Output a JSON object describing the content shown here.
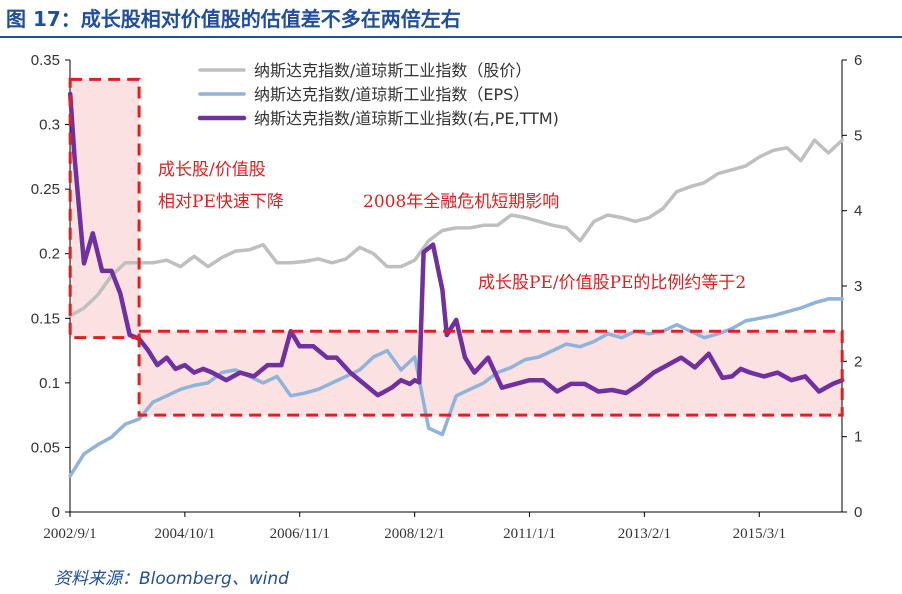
{
  "header": {
    "title": "图 17：成长股相对价值股的估值差不多在两倍左右"
  },
  "footer": {
    "source": "资料来源：Bloomberg、wind"
  },
  "chart_data": {
    "type": "line",
    "title": "图 17：成长股相对价值股的估值差不多在两倍左右",
    "xlabel": "",
    "ylabel": "",
    "x_tick_labels": [
      "2002/9/1",
      "2004/10/1",
      "2006/11/1",
      "2008/12/1",
      "2011/1/1",
      "2013/2/1",
      "2015/3/1"
    ],
    "x_ticks_year": [
      2002.667,
      2004.75,
      2006.833,
      2008.917,
      2011.0,
      2013.083,
      2015.167
    ],
    "xlim": [
      2002.667,
      2016.667
    ],
    "ylim_left": [
      0,
      0.35
    ],
    "y_ticks_left": [
      0,
      0.05,
      0.1,
      0.15,
      0.2,
      0.25,
      0.3,
      0.35
    ],
    "ylim_right": [
      0,
      6
    ],
    "y_ticks_right": [
      0,
      1,
      2,
      3,
      4,
      5,
      6
    ],
    "legend_position": "top-center",
    "grid": false,
    "series": [
      {
        "name": "纳斯达克指数/道琼斯工业指数（股价）",
        "axis": "left",
        "color": "#bfbfbf",
        "x": [
          2002.67,
          2002.92,
          2003.17,
          2003.42,
          2003.67,
          2003.92,
          2004.17,
          2004.42,
          2004.67,
          2004.92,
          2005.17,
          2005.42,
          2005.67,
          2005.92,
          2006.17,
          2006.42,
          2006.67,
          2006.92,
          2007.17,
          2007.42,
          2007.67,
          2007.92,
          2008.17,
          2008.42,
          2008.67,
          2008.92,
          2009.17,
          2009.42,
          2009.67,
          2009.92,
          2010.17,
          2010.42,
          2010.67,
          2010.92,
          2011.17,
          2011.42,
          2011.67,
          2011.92,
          2012.17,
          2012.42,
          2012.67,
          2012.92,
          2013.17,
          2013.42,
          2013.67,
          2013.92,
          2014.17,
          2014.42,
          2014.67,
          2014.92,
          2015.17,
          2015.42,
          2015.67,
          2015.92,
          2016.17,
          2016.42,
          2016.67
        ],
        "values": [
          0.152,
          0.158,
          0.168,
          0.183,
          0.193,
          0.193,
          0.193,
          0.195,
          0.19,
          0.198,
          0.19,
          0.197,
          0.202,
          0.203,
          0.207,
          0.193,
          0.193,
          0.194,
          0.196,
          0.193,
          0.196,
          0.205,
          0.2,
          0.19,
          0.19,
          0.195,
          0.21,
          0.218,
          0.22,
          0.22,
          0.222,
          0.222,
          0.23,
          0.228,
          0.225,
          0.222,
          0.22,
          0.21,
          0.225,
          0.23,
          0.228,
          0.225,
          0.228,
          0.235,
          0.248,
          0.252,
          0.255,
          0.262,
          0.265,
          0.268,
          0.275,
          0.28,
          0.282,
          0.272,
          0.288,
          0.278,
          0.288
        ]
      },
      {
        "name": "纳斯达克指数/道琼斯工业指数（EPS）",
        "axis": "left",
        "color": "#8fb3da",
        "x": [
          2002.67,
          2002.92,
          2003.17,
          2003.42,
          2003.67,
          2003.92,
          2004.17,
          2004.42,
          2004.67,
          2004.92,
          2005.17,
          2005.42,
          2005.67,
          2005.92,
          2006.17,
          2006.42,
          2006.67,
          2006.92,
          2007.17,
          2007.42,
          2007.67,
          2007.92,
          2008.17,
          2008.42,
          2008.67,
          2008.92,
          2009.17,
          2009.42,
          2009.67,
          2009.92,
          2010.17,
          2010.42,
          2010.67,
          2010.92,
          2011.17,
          2011.42,
          2011.67,
          2011.92,
          2012.17,
          2012.42,
          2012.67,
          2012.92,
          2013.17,
          2013.42,
          2013.67,
          2013.92,
          2014.17,
          2014.42,
          2014.67,
          2014.92,
          2015.17,
          2015.42,
          2015.67,
          2015.92,
          2016.17,
          2016.42,
          2016.67
        ],
        "values": [
          0.028,
          0.045,
          0.052,
          0.058,
          0.068,
          0.072,
          0.085,
          0.09,
          0.095,
          0.098,
          0.1,
          0.108,
          0.11,
          0.105,
          0.1,
          0.105,
          0.09,
          0.092,
          0.095,
          0.1,
          0.105,
          0.11,
          0.12,
          0.125,
          0.11,
          0.12,
          0.065,
          0.06,
          0.09,
          0.095,
          0.1,
          0.108,
          0.112,
          0.118,
          0.12,
          0.125,
          0.13,
          0.128,
          0.132,
          0.138,
          0.135,
          0.14,
          0.138,
          0.14,
          0.145,
          0.14,
          0.135,
          0.138,
          0.142,
          0.148,
          0.15,
          0.152,
          0.155,
          0.158,
          0.162,
          0.165,
          0.165
        ]
      },
      {
        "name": "纳斯达克指数/道琼斯工业指数(右,PE,TTM)",
        "axis": "right",
        "color": "#7030a0",
        "x": [
          2002.67,
          2002.75,
          2002.92,
          2003.08,
          2003.25,
          2003.42,
          2003.58,
          2003.75,
          2003.92,
          2004.08,
          2004.25,
          2004.42,
          2004.58,
          2004.75,
          2004.92,
          2005.08,
          2005.25,
          2005.5,
          2005.75,
          2006.0,
          2006.25,
          2006.5,
          2006.67,
          2006.83,
          2007.08,
          2007.33,
          2007.5,
          2007.75,
          2008.0,
          2008.25,
          2008.5,
          2008.67,
          2008.83,
          2008.92,
          2009.0,
          2009.08,
          2009.25,
          2009.42,
          2009.5,
          2009.67,
          2009.83,
          2010.0,
          2010.25,
          2010.5,
          2010.75,
          2011.0,
          2011.25,
          2011.5,
          2011.75,
          2012.0,
          2012.25,
          2012.5,
          2012.75,
          2013.0,
          2013.25,
          2013.5,
          2013.75,
          2014.0,
          2014.25,
          2014.5,
          2014.67,
          2014.83,
          2015.0,
          2015.25,
          2015.5,
          2015.75,
          2016.0,
          2016.25,
          2016.5,
          2016.67
        ],
        "values": [
          5.55,
          4.7,
          3.3,
          3.7,
          3.2,
          3.2,
          2.9,
          2.35,
          2.3,
          2.15,
          1.95,
          2.05,
          1.9,
          1.95,
          1.85,
          1.9,
          1.85,
          1.75,
          1.85,
          1.8,
          1.95,
          1.95,
          2.4,
          2.2,
          2.2,
          2.05,
          2.05,
          1.85,
          1.7,
          1.55,
          1.65,
          1.75,
          1.7,
          1.75,
          1.72,
          3.45,
          3.55,
          2.95,
          2.35,
          2.55,
          2.05,
          1.85,
          2.05,
          1.65,
          1.7,
          1.75,
          1.75,
          1.6,
          1.7,
          1.7,
          1.6,
          1.62,
          1.58,
          1.7,
          1.85,
          1.95,
          2.05,
          1.92,
          2.1,
          1.78,
          1.8,
          1.9,
          1.85,
          1.8,
          1.85,
          1.75,
          1.8,
          1.6,
          1.7,
          1.75
        ]
      }
    ],
    "annotations": [
      {
        "text": "成长股/价值股",
        "line": 1
      },
      {
        "text": "相对PE快速下降",
        "line": 2
      },
      {
        "text": "2008年全融危机短期影响"
      },
      {
        "text": "成长股PE/价值股PE的比例约等于2"
      }
    ],
    "highlight_boxes": [
      {
        "x": [
          2002.67,
          2003.92
        ],
        "y_left": [
          0.135,
          0.335
        ],
        "color": "#fbe1e1",
        "border": "#e02020"
      },
      {
        "x": [
          2003.92,
          2016.67
        ],
        "y_left": [
          0.075,
          0.14
        ],
        "color": "#fbe1e1",
        "border": "#e02020"
      }
    ]
  }
}
